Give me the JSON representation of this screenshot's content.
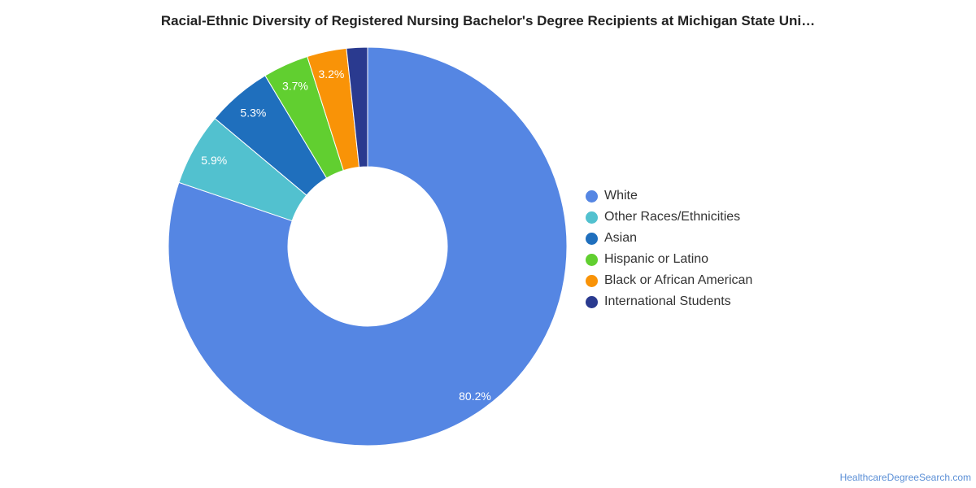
{
  "title": "Racial-Ethnic Diversity of Registered Nursing Bachelor's Degree Recipients at Michigan State Uni…",
  "source": "HealthcareDegreeSearch.com",
  "chart_data": {
    "type": "pie",
    "donut": true,
    "legend_position": "right",
    "series": [
      {
        "name": "White",
        "value": 80.2,
        "label": "80.2%",
        "color": "#5586e3"
      },
      {
        "name": "Other Races/Ethnicities",
        "value": 5.9,
        "label": "5.9%",
        "color": "#52c1cf"
      },
      {
        "name": "Asian",
        "value": 5.3,
        "label": "5.3%",
        "color": "#1f6fbd"
      },
      {
        "name": "Hispanic or Latino",
        "value": 3.7,
        "label": "3.7%",
        "color": "#61cf30"
      },
      {
        "name": "Black or African American",
        "value": 3.2,
        "label": "3.2%",
        "color": "#f99307"
      },
      {
        "name": "International Students",
        "value": 1.7,
        "label": "",
        "color": "#2a3a8f"
      }
    ]
  }
}
